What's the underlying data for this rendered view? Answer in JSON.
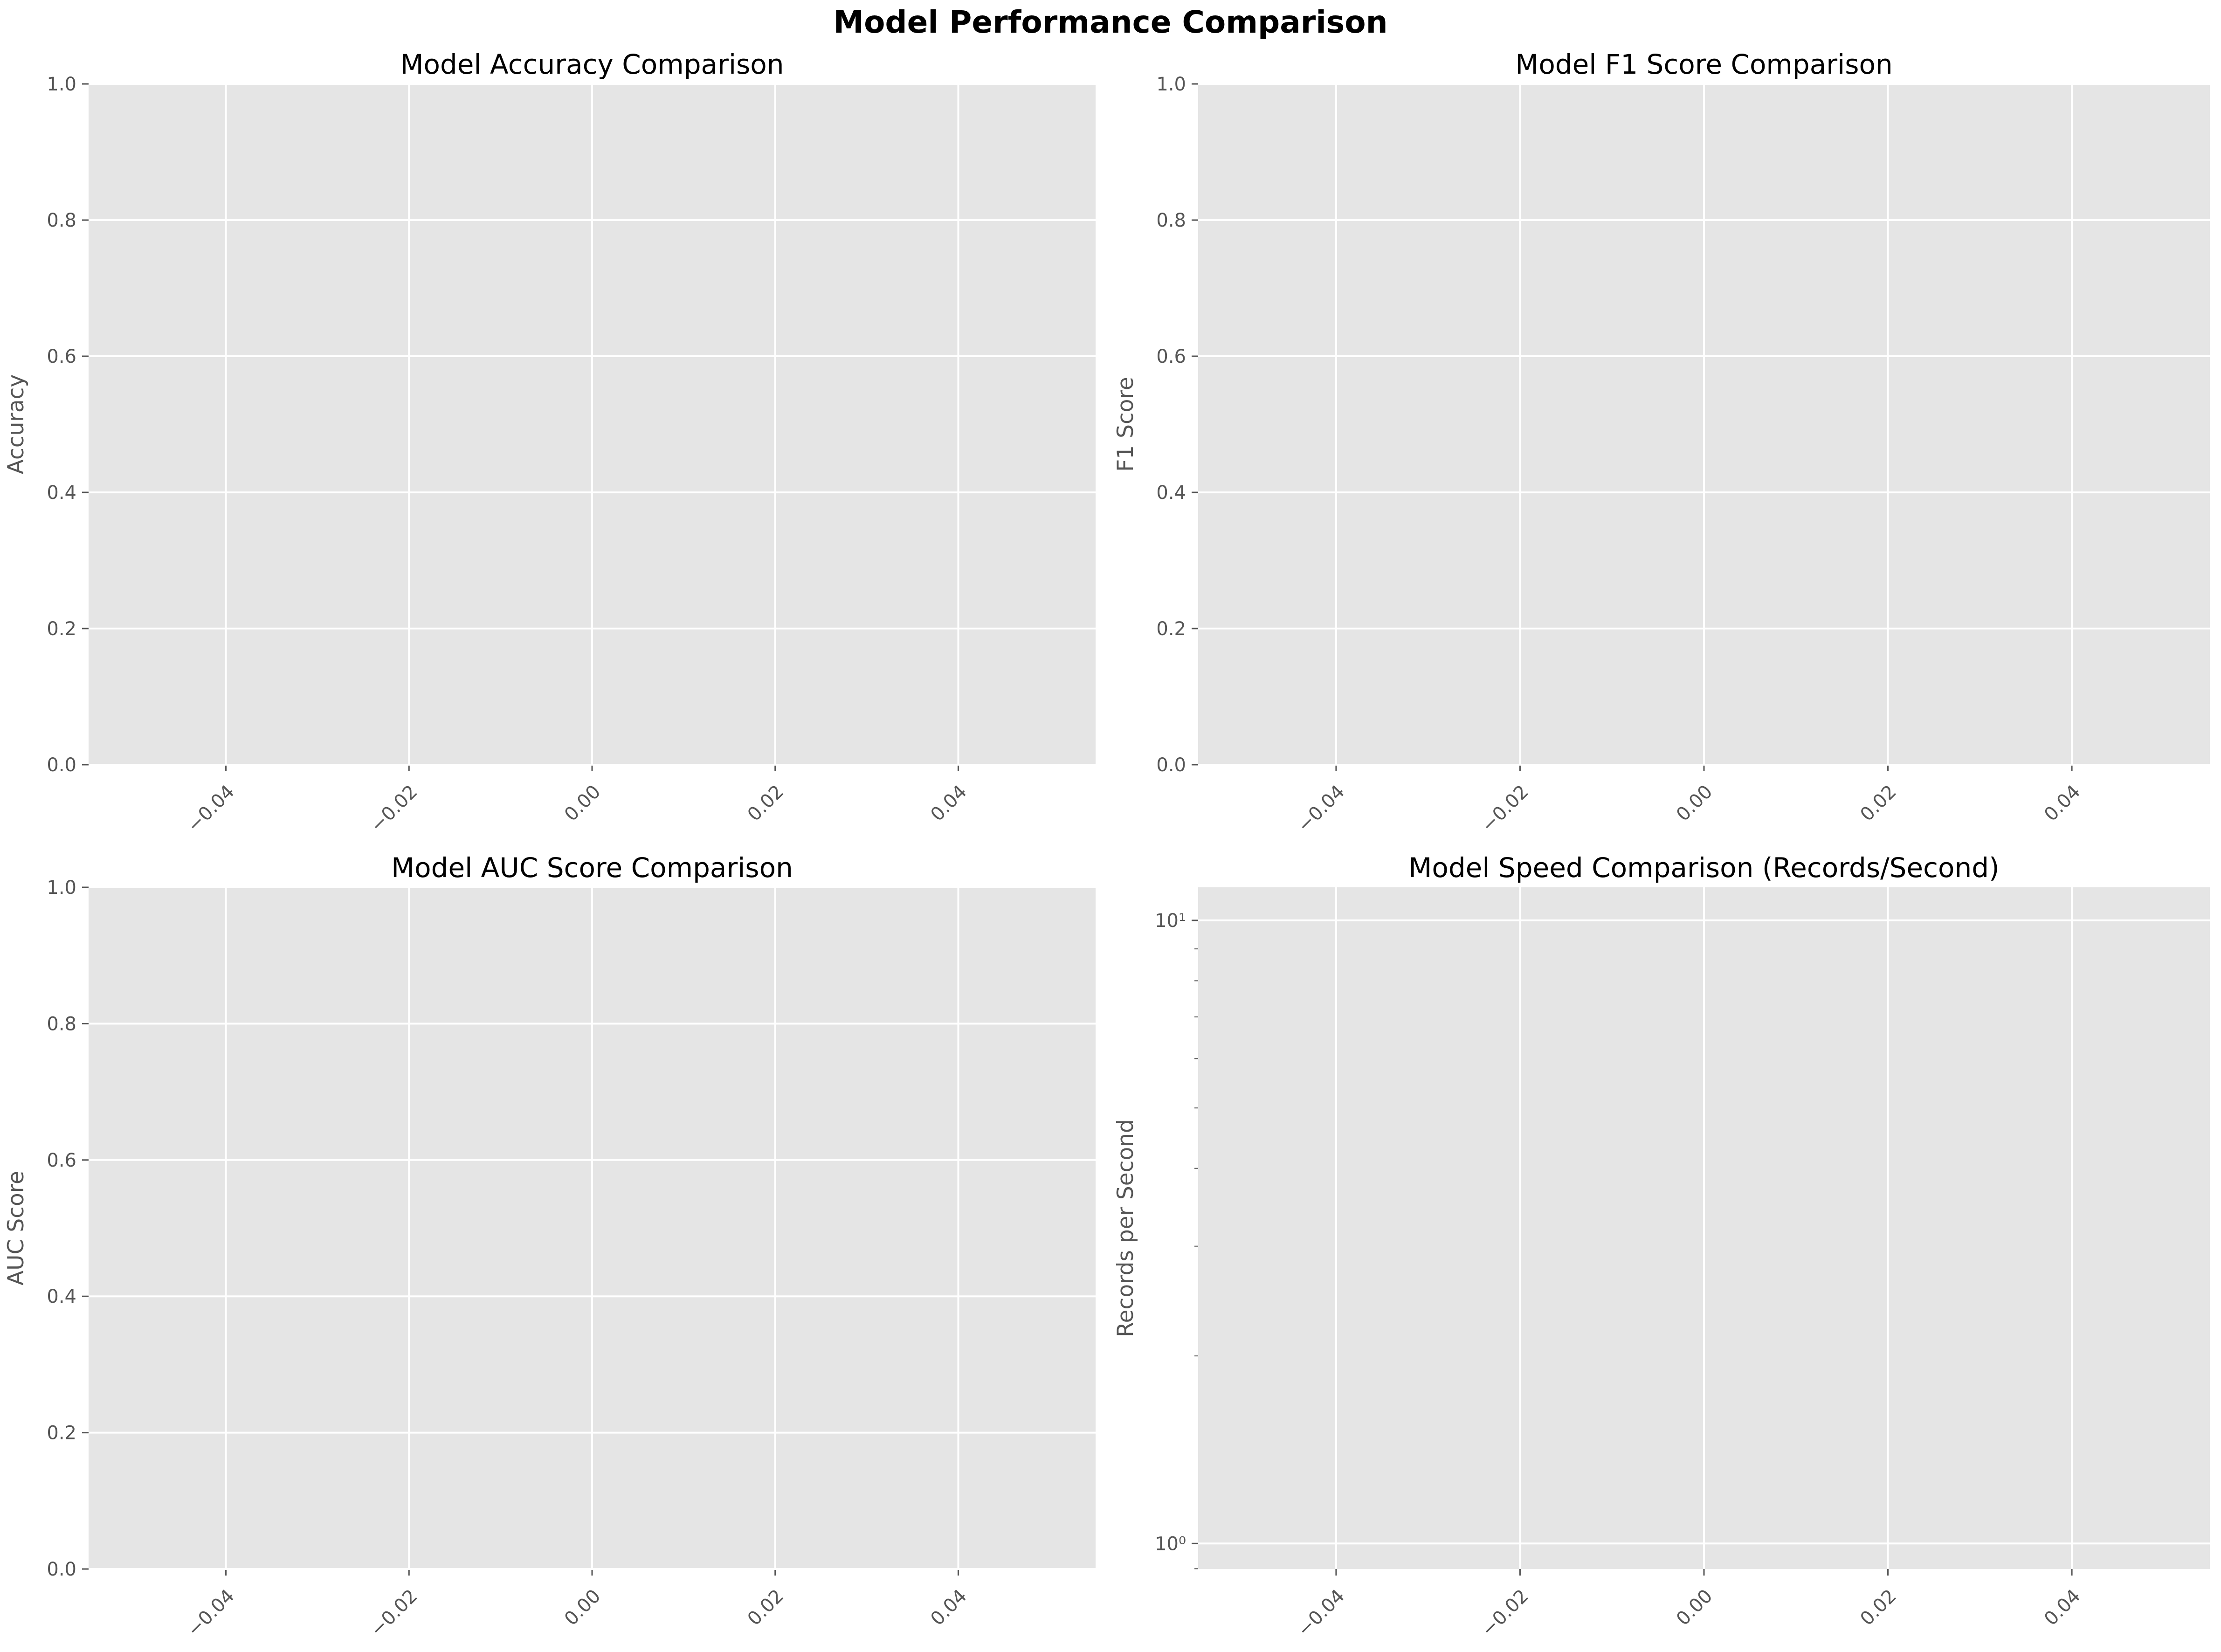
{
  "figure": {
    "title": "Model Performance Comparison"
  },
  "chart_data": [
    {
      "type": "bar",
      "title": "Model Accuracy Comparison",
      "xlabel": "",
      "ylabel": "Accuracy",
      "categories": [],
      "values": [],
      "xlim": [
        -0.055,
        0.055
      ],
      "ylim": [
        0,
        1
      ],
      "xticks": [
        -0.04,
        -0.02,
        0.0,
        0.02,
        0.04
      ],
      "xtick_labels": [
        "−0.04",
        "−0.02",
        "0.00",
        "0.02",
        "0.04"
      ],
      "yticks": [
        0,
        0.2,
        0.4,
        0.6,
        0.8,
        1.0
      ],
      "ytick_labels": [
        "0.0",
        "0.2",
        "0.4",
        "0.6",
        "0.8",
        "1.0"
      ],
      "yscale": "linear",
      "grid": true
    },
    {
      "type": "bar",
      "title": "Model F1 Score Comparison",
      "xlabel": "",
      "ylabel": "F1 Score",
      "categories": [],
      "values": [],
      "xlim": [
        -0.055,
        0.055
      ],
      "ylim": [
        0,
        1
      ],
      "xticks": [
        -0.04,
        -0.02,
        0.0,
        0.02,
        0.04
      ],
      "xtick_labels": [
        "−0.04",
        "−0.02",
        "0.00",
        "0.02",
        "0.04"
      ],
      "yticks": [
        0,
        0.2,
        0.4,
        0.6,
        0.8,
        1.0
      ],
      "ytick_labels": [
        "0.0",
        "0.2",
        "0.4",
        "0.6",
        "0.8",
        "1.0"
      ],
      "yscale": "linear",
      "grid": true
    },
    {
      "type": "bar",
      "title": "Model AUC Score Comparison",
      "xlabel": "",
      "ylabel": "AUC Score",
      "categories": [],
      "values": [],
      "xlim": [
        -0.055,
        0.055
      ],
      "ylim": [
        0,
        1
      ],
      "xticks": [
        -0.04,
        -0.02,
        0.0,
        0.02,
        0.04
      ],
      "xtick_labels": [
        "−0.04",
        "−0.02",
        "0.00",
        "0.02",
        "0.04"
      ],
      "yticks": [
        0,
        0.2,
        0.4,
        0.6,
        0.8,
        1.0
      ],
      "ytick_labels": [
        "0.0",
        "0.2",
        "0.4",
        "0.6",
        "0.8",
        "1.0"
      ],
      "yscale": "linear",
      "grid": true
    },
    {
      "type": "bar",
      "title": "Model Speed Comparison (Records/Second)",
      "xlabel": "",
      "ylabel": "Records per Second",
      "categories": [],
      "values": [],
      "xlim": [
        -0.055,
        0.055
      ],
      "ylim": [
        0.91,
        11.3
      ],
      "xticks": [
        -0.04,
        -0.02,
        0.0,
        0.02,
        0.04
      ],
      "xtick_labels": [
        "−0.04",
        "−0.02",
        "0.00",
        "0.02",
        "0.04"
      ],
      "yticks": [
        1,
        10
      ],
      "ytick_labels": [
        "10⁰",
        "10¹"
      ],
      "yscale": "log",
      "grid": true
    }
  ]
}
